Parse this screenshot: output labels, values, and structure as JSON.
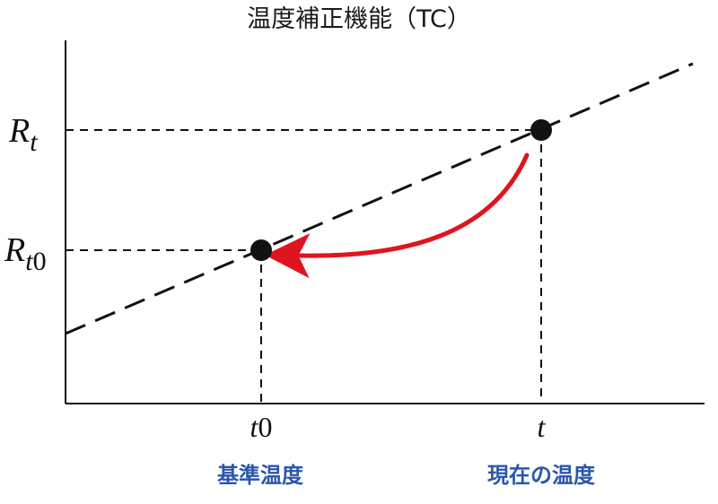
{
  "title": "温度補正機能（TC）",
  "y_labels": {
    "rt_base": "R",
    "rt_sub": "t",
    "rt0_base": "R",
    "rt0_sub_t": "t",
    "rt0_sub_0": "0"
  },
  "x_labels": {
    "t0_var": "t",
    "t0_num": "0",
    "t_var": "t"
  },
  "captions": {
    "reference_temp": "基準温度",
    "current_temp": "現在の温度"
  },
  "colors": {
    "axis": "#111111",
    "line": "#111111",
    "arrow": "#e0141e",
    "caption": "#2b57a8",
    "point": "#111111"
  }
}
